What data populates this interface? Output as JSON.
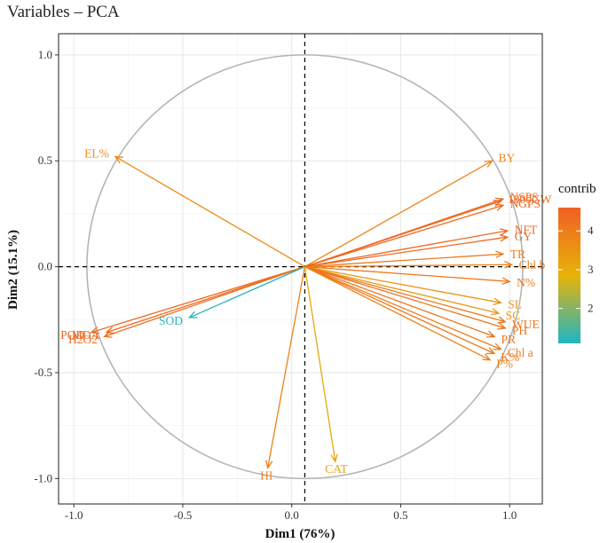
{
  "chart_data": {
    "type": "pca-biplot",
    "title": "Variables – PCA",
    "xlabel": "Dim1 (76%)",
    "ylabel": "Dim2 (15.1%)",
    "xlim": [
      -1.07,
      1.15
    ],
    "ylim": [
      -1.12,
      1.1
    ],
    "xticks": [
      -1.0,
      -0.5,
      0.0,
      0.5,
      1.0
    ],
    "yticks": [
      -1.0,
      -0.5,
      0.0,
      0.5,
      1.0
    ],
    "xtick_labels": [
      "-1.0",
      "-0.5",
      "0.0",
      "0.5",
      "1.0"
    ],
    "ytick_labels": [
      "-1.0",
      "-0.5",
      "0.0",
      "0.5",
      "1.0"
    ],
    "origin": [
      0.06,
      0.0
    ],
    "circle_radius": 1.0,
    "grid": true,
    "variables": [
      {
        "name": "EL%",
        "x": -0.81,
        "y": 0.52,
        "contrib": 3.7
      },
      {
        "name": "BY",
        "x": 0.92,
        "y": 0.5,
        "contrib": 3.8
      },
      {
        "name": "NSPS",
        "x": 0.97,
        "y": 0.32,
        "contrib": 4.4
      },
      {
        "name": "1000GW",
        "x": 0.96,
        "y": 0.31,
        "contrib": 4.4
      },
      {
        "name": "NGPS",
        "x": 0.97,
        "y": 0.29,
        "contrib": 4.4
      },
      {
        "name": "NFT",
        "x": 0.99,
        "y": 0.17,
        "contrib": 4.4
      },
      {
        "name": "GY",
        "x": 0.99,
        "y": 0.14,
        "contrib": 4.4
      },
      {
        "name": "TR",
        "x": 0.97,
        "y": 0.06,
        "contrib": 4.0
      },
      {
        "name": "Chl b",
        "x": 1.01,
        "y": 0.01,
        "contrib": 3.9
      },
      {
        "name": "N%",
        "x": 1.0,
        "y": -0.07,
        "contrib": 4.1
      },
      {
        "name": "SL",
        "x": 0.96,
        "y": -0.17,
        "contrib": 3.5
      },
      {
        "name": "SC",
        "x": 0.95,
        "y": -0.22,
        "contrib": 3.4
      },
      {
        "name": "WUE",
        "x": 0.98,
        "y": -0.26,
        "contrib": 4.1
      },
      {
        "name": "PH",
        "x": 0.98,
        "y": -0.29,
        "contrib": 4.2
      },
      {
        "name": "PR",
        "x": 0.93,
        "y": -0.33,
        "contrib": 4.1
      },
      {
        "name": "Chl a",
        "x": 0.96,
        "y": -0.39,
        "contrib": 4.0
      },
      {
        "name": "K%",
        "x": 0.93,
        "y": -0.41,
        "contrib": 4.1
      },
      {
        "name": "P%",
        "x": 0.91,
        "y": -0.44,
        "contrib": 3.9
      },
      {
        "name": "MDA",
        "x": -0.85,
        "y": -0.31,
        "contrib": 4.4
      },
      {
        "name": "POD",
        "x": -0.92,
        "y": -0.31,
        "contrib": 4.4
      },
      {
        "name": "H2O2",
        "x": -0.86,
        "y": -0.33,
        "contrib": 4.3
      },
      {
        "name": "SOD",
        "x": -0.47,
        "y": -0.24,
        "contrib": 1.2
      },
      {
        "name": "HI",
        "x": -0.11,
        "y": -0.95,
        "contrib": 3.9
      },
      {
        "name": "CAT",
        "x": 0.2,
        "y": -0.92,
        "contrib": 3.1
      }
    ],
    "legend": {
      "title": "contrib",
      "ticks": [
        2,
        3,
        4
      ],
      "tick_labels": [
        "2",
        "3",
        "4"
      ],
      "range": [
        1.1,
        4.6
      ],
      "colors": [
        "#1fb5c4",
        "#e8b20a",
        "#f06024"
      ],
      "placement": "right"
    }
  }
}
